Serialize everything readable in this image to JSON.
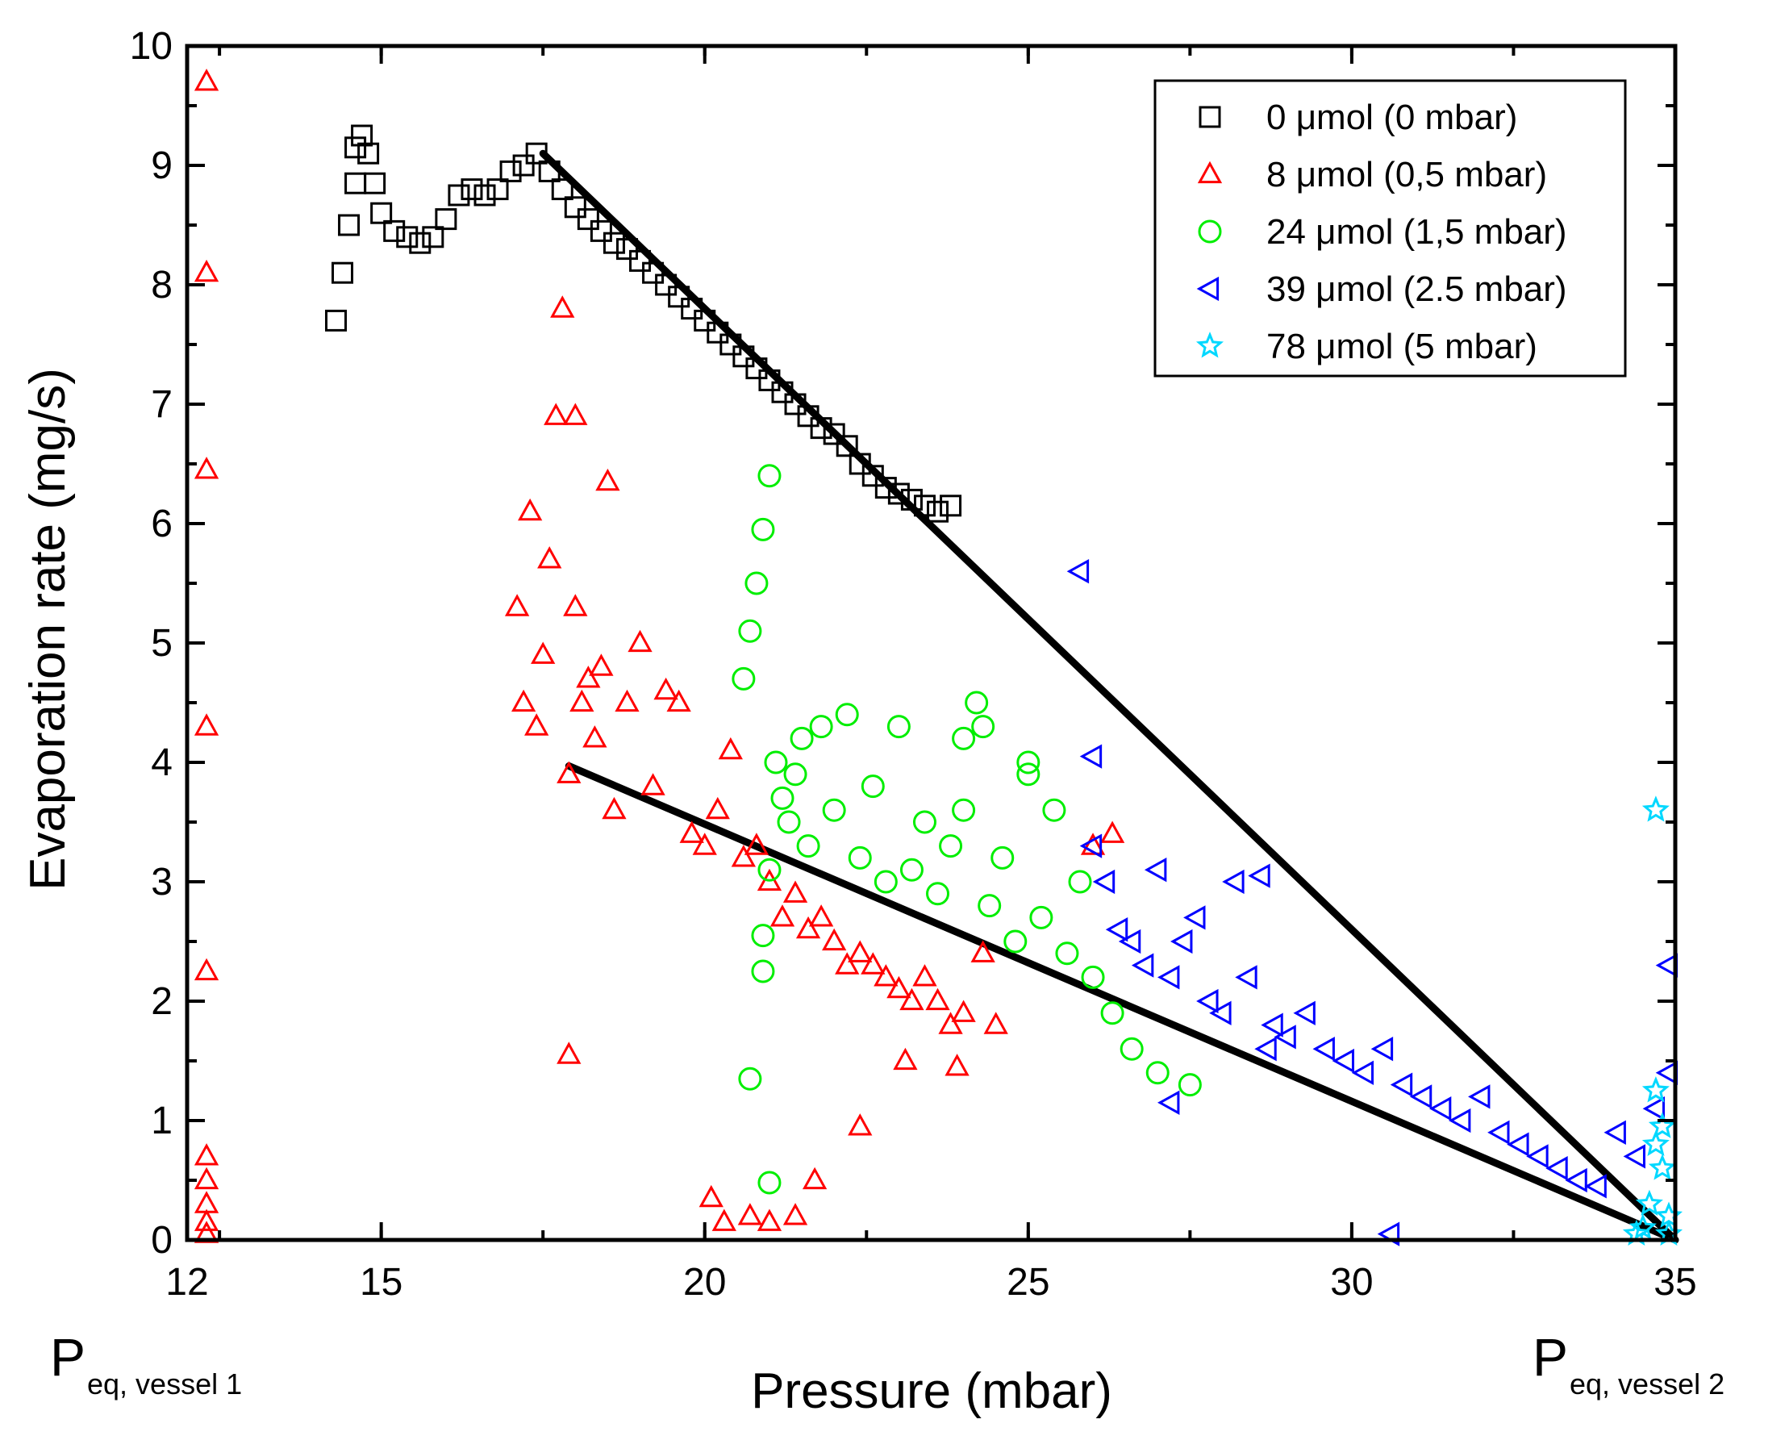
{
  "chart_data": {
    "type": "scatter",
    "title": "",
    "xlabel": "Pressure (mbar)",
    "ylabel": "Evaporation rate (mg/s)",
    "xlim": [
      12,
      35
    ],
    "ylim": [
      0,
      10
    ],
    "xticks": [
      12,
      15,
      20,
      25,
      30,
      35
    ],
    "yticks": [
      0,
      1,
      2,
      3,
      4,
      5,
      6,
      7,
      8,
      9,
      10
    ],
    "grid": false,
    "legend_position": "top-right",
    "bottom_annotations": [
      {
        "main": "P",
        "sub": "eq, vessel 1",
        "x": 12
      },
      {
        "main": "P",
        "sub": "eq, vessel 2",
        "x": 35
      }
    ],
    "series": [
      {
        "name": "0 μmol (0 mbar)",
        "marker": "square",
        "color": "#000000",
        "x": [
          14.3,
          14.4,
          14.5,
          14.6,
          14.6,
          14.7,
          14.8,
          14.9,
          15.0,
          15.2,
          15.4,
          15.6,
          15.8,
          16.0,
          16.2,
          16.4,
          16.6,
          16.8,
          17.0,
          17.2,
          17.4,
          17.6,
          17.8,
          18.0,
          18.2,
          18.4,
          18.6,
          18.8,
          19.0,
          19.2,
          19.4,
          19.6,
          19.8,
          20.0,
          20.2,
          20.4,
          20.6,
          20.8,
          21.0,
          21.2,
          21.4,
          21.6,
          21.8,
          22.0,
          22.2,
          22.4,
          22.6,
          22.8,
          23.0,
          23.2,
          23.4,
          23.6,
          23.8
        ],
        "y": [
          7.7,
          8.1,
          8.5,
          8.85,
          9.15,
          9.25,
          9.1,
          8.85,
          8.6,
          8.45,
          8.4,
          8.35,
          8.4,
          8.55,
          8.75,
          8.8,
          8.75,
          8.8,
          8.95,
          9.0,
          9.1,
          8.95,
          8.8,
          8.65,
          8.55,
          8.45,
          8.35,
          8.3,
          8.2,
          8.1,
          8.0,
          7.9,
          7.8,
          7.7,
          7.6,
          7.5,
          7.4,
          7.3,
          7.2,
          7.1,
          7.0,
          6.9,
          6.8,
          6.75,
          6.65,
          6.5,
          6.4,
          6.3,
          6.25,
          6.2,
          6.15,
          6.1,
          6.15
        ]
      },
      {
        "name": "8 μmol (0,5 mbar)",
        "marker": "triangle-up",
        "color": "#ff0000",
        "x": [
          12.3,
          12.3,
          12.3,
          12.3,
          12.3,
          12.3,
          12.3,
          12.3,
          12.3,
          12.3,
          17.1,
          17.2,
          17.3,
          17.4,
          17.5,
          17.6,
          17.7,
          17.8,
          17.9,
          18.0,
          18.1,
          18.2,
          18.3,
          18.4,
          18.5,
          18.6,
          18.8,
          19.0,
          19.2,
          19.4,
          19.6,
          19.8,
          20.0,
          20.2,
          20.4,
          20.6,
          20.8,
          21.0,
          21.2,
          21.4,
          21.6,
          21.8,
          22.0,
          22.2,
          22.4,
          22.6,
          22.8,
          23.0,
          23.2,
          23.4,
          23.6,
          23.8,
          24.0,
          24.3,
          24.5,
          26.0,
          26.3,
          20.1,
          20.3,
          20.7,
          21.0,
          21.4,
          21.7,
          22.4,
          17.9,
          18.0,
          23.1,
          23.9
        ],
        "y": [
          9.7,
          8.1,
          6.45,
          4.3,
          2.25,
          0.7,
          0.5,
          0.3,
          0.15,
          0.05,
          5.3,
          4.5,
          6.1,
          4.3,
          4.9,
          5.7,
          6.9,
          7.8,
          3.9,
          6.9,
          4.5,
          4.7,
          4.2,
          4.8,
          6.35,
          3.6,
          4.5,
          5.0,
          3.8,
          4.6,
          4.5,
          3.4,
          3.3,
          3.6,
          4.1,
          3.2,
          3.3,
          3.0,
          2.7,
          2.9,
          2.6,
          2.7,
          2.5,
          2.3,
          2.4,
          2.3,
          2.2,
          2.1,
          2.0,
          2.2,
          2.0,
          1.8,
          1.9,
          2.4,
          1.8,
          3.3,
          3.4,
          0.35,
          0.15,
          0.2,
          0.15,
          0.2,
          0.5,
          0.95,
          1.55,
          5.3,
          1.5,
          1.45
        ]
      },
      {
        "name": "24 μmol (1,5 mbar)",
        "marker": "circle",
        "color": "#00ee00",
        "x": [
          20.6,
          20.7,
          20.8,
          20.9,
          21.0,
          21.0,
          21.1,
          21.2,
          21.3,
          21.4,
          21.5,
          21.6,
          21.8,
          22.0,
          22.2,
          22.4,
          22.6,
          22.8,
          23.0,
          23.2,
          23.4,
          23.6,
          23.8,
          24.0,
          24.2,
          24.4,
          24.6,
          24.8,
          25.0,
          25.2,
          25.4,
          25.6,
          25.8,
          26.0,
          26.3,
          26.6,
          27.0,
          27.5,
          20.7,
          20.9,
          20.9,
          21.0,
          25.0,
          24.0,
          24.3
        ],
        "y": [
          4.7,
          5.1,
          5.5,
          5.95,
          6.4,
          3.1,
          4.0,
          3.7,
          3.5,
          3.9,
          4.2,
          3.3,
          4.3,
          3.6,
          4.4,
          3.2,
          3.8,
          3.0,
          4.3,
          3.1,
          3.5,
          2.9,
          3.3,
          3.6,
          4.5,
          2.8,
          3.2,
          2.5,
          3.9,
          2.7,
          3.6,
          2.4,
          3.0,
          2.2,
          1.9,
          1.6,
          1.4,
          1.3,
          1.35,
          2.25,
          2.55,
          0.48,
          4.0,
          4.2,
          4.3
        ]
      },
      {
        "name": "39 μmol (2.5 mbar)",
        "marker": "triangle-left",
        "color": "#0000ff",
        "x": [
          25.8,
          26.0,
          26.0,
          26.2,
          26.4,
          26.6,
          26.8,
          27.0,
          27.2,
          27.4,
          27.6,
          27.8,
          28.0,
          28.2,
          28.4,
          28.6,
          28.8,
          29.0,
          29.3,
          29.6,
          29.9,
          30.2,
          30.5,
          30.8,
          31.1,
          31.4,
          31.7,
          32.0,
          32.3,
          32.6,
          32.9,
          33.2,
          33.5,
          33.8,
          34.1,
          34.4,
          34.7,
          34.9,
          27.2,
          28.7,
          30.6,
          34.9
        ],
        "y": [
          5.6,
          4.05,
          3.3,
          3.0,
          2.6,
          2.5,
          2.3,
          3.1,
          2.2,
          2.5,
          2.7,
          2.0,
          1.9,
          3.0,
          2.2,
          3.05,
          1.8,
          1.7,
          1.9,
          1.6,
          1.5,
          1.4,
          1.6,
          1.3,
          1.2,
          1.1,
          1.0,
          1.2,
          0.9,
          0.8,
          0.7,
          0.6,
          0.5,
          0.45,
          0.9,
          0.7,
          1.1,
          2.3,
          1.15,
          1.6,
          0.05,
          1.4
        ]
      },
      {
        "name": "78 μmol (5 mbar)",
        "marker": "star",
        "color": "#00d8ff",
        "x": [
          34.4,
          34.5,
          34.6,
          34.7,
          34.7,
          34.8,
          34.8,
          34.9,
          34.9,
          34.7
        ],
        "y": [
          0.05,
          0.1,
          0.3,
          0.8,
          1.25,
          0.95,
          0.6,
          0.2,
          0.05,
          3.6
        ]
      }
    ],
    "fit_lines": [
      {
        "name": "fit-0umol",
        "x": [
          17.5,
          35.0
        ],
        "y": [
          9.1,
          0.0
        ],
        "color": "#000000"
      },
      {
        "name": "fit-8umol",
        "x": [
          17.9,
          35.0
        ],
        "y": [
          3.97,
          0.0
        ],
        "color": "#000000"
      }
    ]
  }
}
